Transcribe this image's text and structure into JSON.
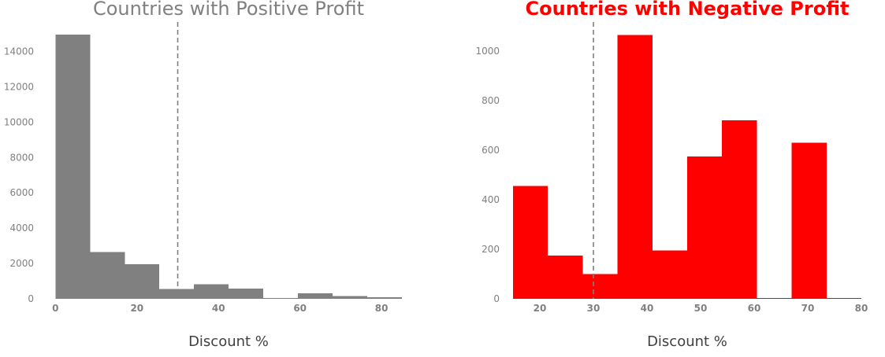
{
  "chart_data": [
    {
      "type": "bar",
      "title": "Countries with Positive Profit",
      "xlabel": "Discount %",
      "ylabel": "",
      "color": "#808080",
      "xlim": [
        -2,
        85
      ],
      "ylim": [
        0,
        15000
      ],
      "xticks": [
        0,
        20,
        40,
        60,
        80
      ],
      "yticks": [
        0,
        2000,
        4000,
        6000,
        8000,
        10000,
        12000,
        14000
      ],
      "bin_edges": [
        0,
        8.5,
        17,
        25.5,
        34,
        42.5,
        51,
        59.5,
        68,
        76.5,
        85
      ],
      "values": [
        14950,
        2650,
        1950,
        560,
        820,
        580,
        0,
        320,
        150,
        90
      ],
      "reference_line_x": 30,
      "grid": false
    },
    {
      "type": "bar",
      "title": "Countries with Negative Profit",
      "xlabel": "Discount %",
      "ylabel": "",
      "color": "#ff0000",
      "xlim": [
        15,
        80
      ],
      "ylim": [
        0,
        1070
      ],
      "xticks": [
        20,
        30,
        40,
        50,
        60,
        70,
        80
      ],
      "yticks": [
        0,
        200,
        400,
        600,
        800,
        1000
      ],
      "bin_edges": [
        15,
        21.5,
        28,
        34.5,
        41,
        47.5,
        54,
        60.5,
        67,
        73.5,
        80
      ],
      "values": [
        455,
        175,
        100,
        1065,
        195,
        575,
        720,
        0,
        630,
        0
      ],
      "reference_line_x": 30,
      "grid": false
    }
  ]
}
